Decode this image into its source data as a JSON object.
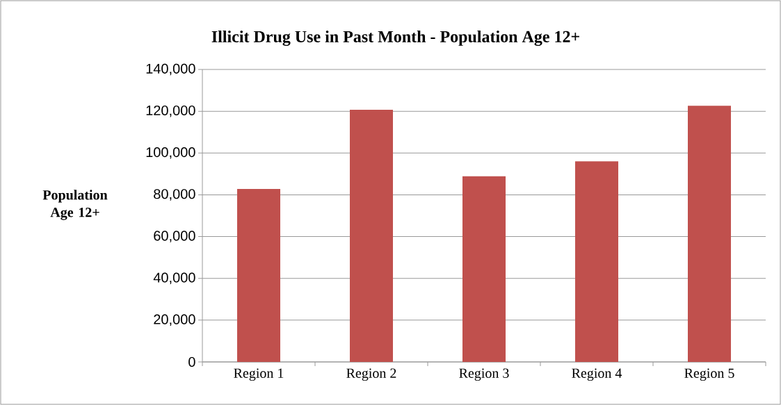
{
  "chart_data": {
    "type": "bar",
    "title": "Illicit Drug Use in Past Month - Population Age 12+",
    "ylabel": "Population Age 12+",
    "categories": [
      "Region 1",
      "Region 2",
      "Region 3",
      "Region 4",
      "Region 5"
    ],
    "values": [
      82800,
      120700,
      88900,
      96000,
      122600
    ],
    "color": "#c0504d",
    "ylim": [
      0,
      140000
    ],
    "yticks": [
      {
        "value": 0,
        "label": "0"
      },
      {
        "value": 20000,
        "label": "20,000"
      },
      {
        "value": 40000,
        "label": "40,000"
      },
      {
        "value": 60000,
        "label": "60,000"
      },
      {
        "value": 80000,
        "label": "80,000"
      },
      {
        "value": 100000,
        "label": "100,000"
      },
      {
        "value": 120000,
        "label": "120,000"
      },
      {
        "value": 140000,
        "label": "140,000"
      }
    ],
    "grid": "y"
  }
}
